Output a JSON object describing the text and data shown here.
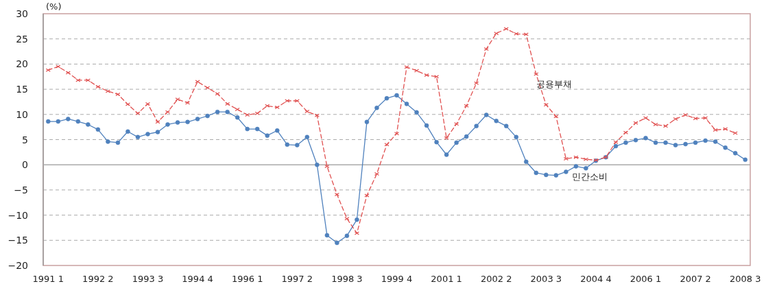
{
  "chart_data": {
    "type": "line",
    "ylabel": "(%)",
    "ylim": [
      -20,
      30
    ],
    "yticks": [
      -20,
      -15,
      -10,
      -5,
      0,
      5,
      10,
      15,
      20,
      25,
      30
    ],
    "grid": "y",
    "categories": [
      "1991 1",
      null,
      null,
      null,
      null,
      "1992 2",
      null,
      null,
      null,
      null,
      "1993 3",
      null,
      null,
      null,
      null,
      "1994 4",
      null,
      null,
      null,
      null,
      "1996 1",
      null,
      null,
      null,
      null,
      "1997 2",
      null,
      null,
      null,
      null,
      "1998 3",
      null,
      null,
      null,
      null,
      "1999 4",
      null,
      null,
      null,
      null,
      "2001 1",
      null,
      null,
      null,
      null,
      "2002 2",
      null,
      null,
      null,
      null,
      "2003 3",
      null,
      null,
      null,
      null,
      "2004 4",
      null,
      null,
      null,
      null,
      "2006 1",
      null,
      null,
      null,
      null,
      "2007 2",
      null,
      null,
      null,
      null,
      "2008 3"
    ],
    "series": [
      {
        "name": "민간소비",
        "color": "#4f81bd",
        "marker": "circle",
        "line_style": "solid",
        "values": [
          8.6,
          8.6,
          9.1,
          8.6,
          8.0,
          7.0,
          4.6,
          4.4,
          6.6,
          5.5,
          6.1,
          6.5,
          8.0,
          8.4,
          8.5,
          9.1,
          9.7,
          10.5,
          10.5,
          9.4,
          7.1,
          7.1,
          5.8,
          6.8,
          4.0,
          3.9,
          5.5,
          0,
          -14.0,
          -15.5,
          -14.1,
          -10.9,
          8.5,
          11.3,
          13.2,
          13.8,
          12.1,
          10.4,
          7.8,
          4.5,
          2.0,
          4.4,
          5.6,
          7.7,
          9.9,
          8.7,
          7.7,
          5.5,
          0.6,
          -1.6,
          -2.0,
          -2.1,
          -1.4,
          -0.3,
          -0.7,
          0.8,
          1.5,
          3.7,
          4.4,
          4.9,
          5.3,
          4.4,
          4.4,
          3.9,
          4.1,
          4.4,
          4.8,
          4.6,
          3.4,
          2.3,
          1.0
        ]
      },
      {
        "name": "공용부채",
        "color": "#e05050",
        "marker": "cross",
        "line_style": "dashed",
        "values": [
          18.8,
          19.5,
          18.3,
          16.8,
          16.8,
          15.5,
          14.6,
          14.0,
          12.0,
          10.2,
          12.1,
          8.5,
          10.5,
          13.0,
          12.3,
          16.5,
          15.3,
          14.1,
          12.1,
          11.0,
          9.9,
          10.2,
          11.7,
          11.4,
          12.7,
          12.7,
          10.6,
          9.8,
          -0.3,
          -5.9,
          -10.7,
          -13.6,
          -6.1,
          -1.8,
          4.0,
          6.2,
          19.4,
          18.7,
          17.8,
          17.5,
          5.3,
          8.1,
          11.7,
          16.2,
          23.0,
          26.1,
          27.0,
          26.0,
          25.9,
          18.0,
          11.9,
          9.6,
          1.2,
          1.5,
          1.1,
          0.9,
          1.5,
          4.5,
          6.4,
          8.3,
          9.3,
          8.0,
          7.7,
          9.1,
          9.9,
          9.2,
          9.3,
          6.9,
          7.1,
          6.3,
          null
        ]
      }
    ]
  }
}
